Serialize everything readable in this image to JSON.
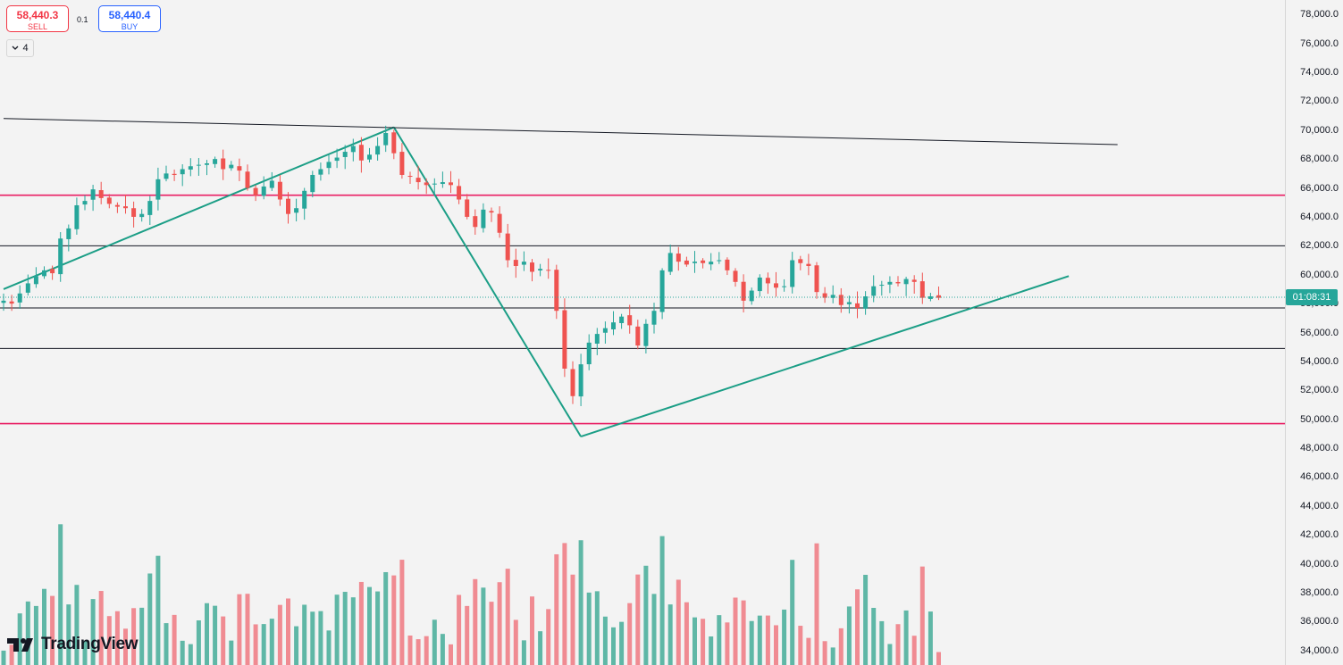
{
  "trade": {
    "sell_price": "58,440.3",
    "sell_label": "SELL",
    "buy_price": "58,440.4",
    "buy_label": "BUY",
    "spread": "0.1"
  },
  "indicators_count": "4",
  "logo_text": "TradingView",
  "countdown": "01:08:31",
  "colors": {
    "up": "#26a69a",
    "down": "#ef5350",
    "vol_up": "#5fb7a6",
    "vol_down": "#f08b92",
    "trendline": "#1b9e86",
    "red_level": "#e91e63",
    "black_level": "#131722"
  },
  "chart_data": {
    "type": "candlestick",
    "y_axis": {
      "min": 33000,
      "max": 79000,
      "ticks": [
        "78,000.0",
        "76,000.0",
        "74,000.0",
        "72,000.0",
        "70,000.0",
        "68,000.0",
        "66,000.0",
        "64,000.0",
        "62,000.0",
        "60,000.0",
        "58,000.0",
        "56,000.0",
        "54,000.0",
        "52,000.0",
        "50,000.0",
        "48,000.0",
        "46,000.0",
        "44,000.0",
        "42,000.0",
        "40,000.0",
        "38,000.0",
        "36,000.0",
        "34,000.0"
      ]
    },
    "last_price": 58440.3,
    "closes": [
      58200,
      58000,
      58700,
      59400,
      59900,
      60300,
      60100,
      62500,
      63200,
      64800,
      65100,
      65900,
      65300,
      64900,
      64700,
      64600,
      64000,
      64200,
      65100,
      66600,
      67000,
      66900,
      67300,
      67500,
      67600,
      67700,
      68000,
      67300,
      67600,
      67200,
      66000,
      65500,
      66100,
      66500,
      65200,
      64200,
      64600,
      65800,
      66900,
      67300,
      67800,
      68100,
      68500,
      68900,
      67900,
      68300,
      68900,
      69800,
      68400,
      66900,
      66800,
      66400,
      66200,
      66300,
      66400,
      66200,
      65200,
      64000,
      63300,
      64500,
      64300,
      62900,
      61000,
      60600,
      60900,
      60200,
      60400,
      60300,
      57500,
      53500,
      51600,
      53800,
      55300,
      55900,
      56300,
      56700,
      57100,
      56500,
      55100,
      56600,
      57500,
      60300,
      61500,
      60900,
      60700,
      60900,
      60800,
      60900,
      61000,
      60300,
      59500,
      58200,
      58900,
      59800,
      59400,
      59100,
      59200,
      61000,
      60800,
      60600,
      58800,
      58400,
      58600,
      57900,
      58100,
      57700,
      58500,
      59200,
      59300,
      59500,
      59400,
      59700,
      59500,
      58400,
      58500,
      58400
    ],
    "volume_range": [
      33000,
      44000
    ],
    "horizontal_levels": [
      {
        "price": 65500,
        "color": "red"
      },
      {
        "price": 62000,
        "color": "black"
      },
      {
        "price": 57700,
        "color": "black"
      },
      {
        "price": 54900,
        "color": "black"
      },
      {
        "price": 49700,
        "color": "red"
      }
    ],
    "trendlines": [
      {
        "points": [
          [
            0,
            59000
          ],
          [
            48,
            70200
          ]
        ],
        "color": "teal"
      },
      {
        "points": [
          [
            48,
            70200
          ],
          [
            71,
            48800
          ]
        ],
        "color": "teal"
      },
      {
        "points": [
          [
            71,
            48800
          ],
          [
            131,
            59900
          ]
        ],
        "color": "teal"
      },
      {
        "points": [
          [
            0,
            70800
          ],
          [
            137,
            69000
          ]
        ],
        "color": "black"
      }
    ]
  }
}
